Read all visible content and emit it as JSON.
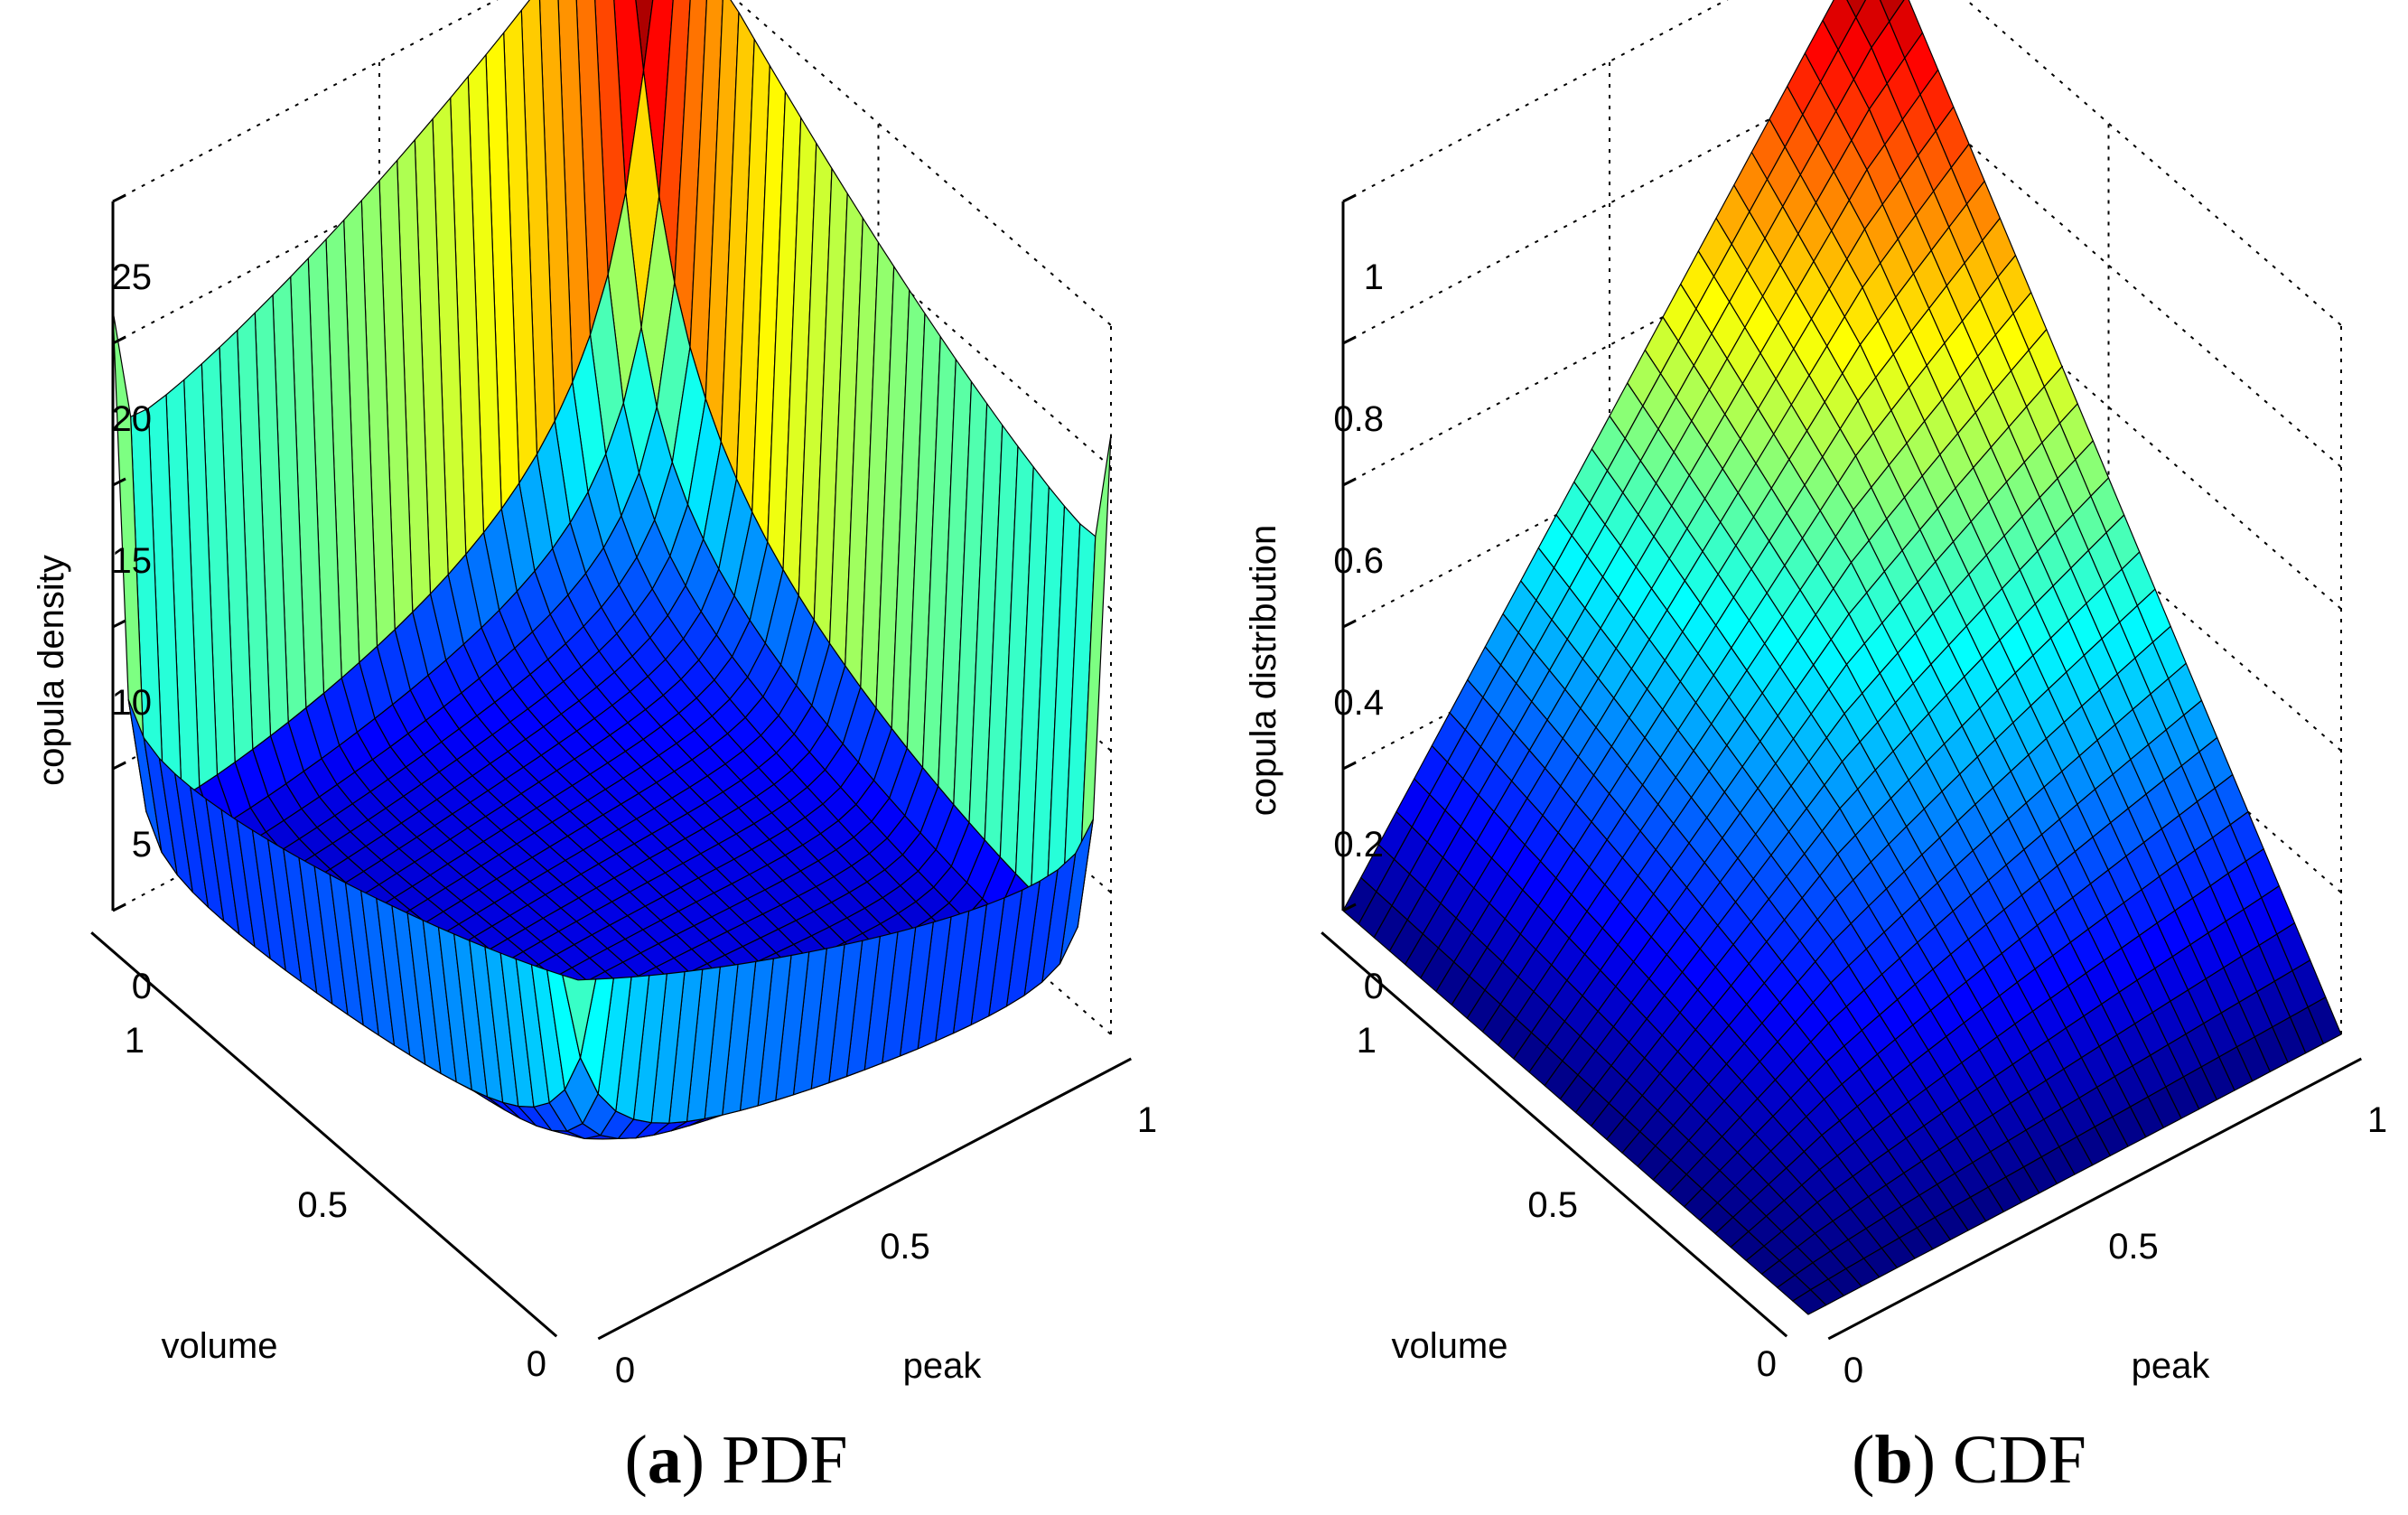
{
  "chart_data": [
    {
      "type": "surface3d",
      "panel_label": "a",
      "panel_title": "PDF",
      "zlabel": "copula density",
      "xlabel": "peak",
      "ylabel": "volume",
      "xlim": [
        0,
        1
      ],
      "ylim": [
        0,
        1
      ],
      "zlim": [
        0,
        25
      ],
      "x_ticks": [
        "0",
        "0.5",
        "1"
      ],
      "y_ticks": [
        "0",
        "0.5",
        "1"
      ],
      "z_ticks": [
        "0",
        "5",
        "10",
        "15",
        "20",
        "25"
      ],
      "grid": true,
      "colormap": "jet",
      "surface_peaks": [
        {
          "location": "peak=0, volume=0",
          "approx_max": 11,
          "color": "#800000"
        },
        {
          "location": "peak=1, volume=1",
          "approx_max": 26,
          "color": "#4fd6ff"
        }
      ],
      "base_level": 0
    },
    {
      "type": "surface3d",
      "panel_label": "b",
      "panel_title": "CDF",
      "zlabel": "copula distribution",
      "xlabel": "peak",
      "ylabel": "volume",
      "xlim": [
        0,
        1
      ],
      "ylim": [
        0,
        1
      ],
      "zlim": [
        0,
        1
      ],
      "x_ticks": [
        "0",
        "0.5",
        "1"
      ],
      "y_ticks": [
        "0",
        "0.5",
        "1"
      ],
      "z_ticks": [
        "0",
        "0.2",
        "0.4",
        "0.6",
        "0.8",
        "1"
      ],
      "grid": true,
      "colormap": "jet",
      "surface_corners": [
        {
          "peak": 0,
          "volume": 0,
          "value": 0
        },
        {
          "peak": 1,
          "volume": 0,
          "value": 0
        },
        {
          "peak": 0,
          "volume": 1,
          "value": 0
        },
        {
          "peak": 1,
          "volume": 1,
          "value": 1
        }
      ]
    }
  ]
}
